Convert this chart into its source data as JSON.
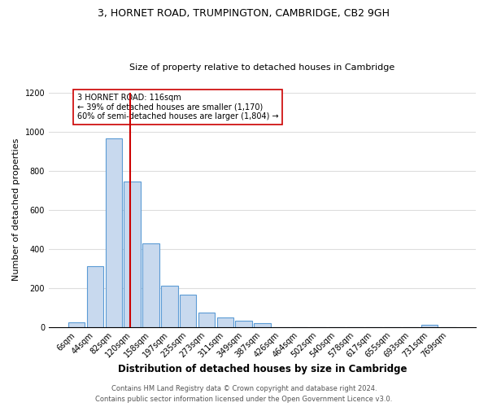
{
  "title": "3, HORNET ROAD, TRUMPINGTON, CAMBRIDGE, CB2 9GH",
  "subtitle": "Size of property relative to detached houses in Cambridge",
  "xlabel": "Distribution of detached houses by size in Cambridge",
  "ylabel": "Number of detached properties",
  "bar_labels": [
    "6sqm",
    "44sqm",
    "82sqm",
    "120sqm",
    "158sqm",
    "197sqm",
    "235sqm",
    "273sqm",
    "311sqm",
    "349sqm",
    "387sqm",
    "426sqm",
    "464sqm",
    "502sqm",
    "540sqm",
    "578sqm",
    "617sqm",
    "655sqm",
    "693sqm",
    "731sqm",
    "769sqm"
  ],
  "bar_values": [
    22,
    310,
    965,
    745,
    430,
    210,
    165,
    75,
    48,
    32,
    18,
    0,
    0,
    0,
    0,
    0,
    0,
    0,
    0,
    10,
    0
  ],
  "bar_color": "#c8d9ee",
  "bar_edge_color": "#5b9bd5",
  "vline_color": "#cc0000",
  "annotation_text": "3 HORNET ROAD: 116sqm\n← 39% of detached houses are smaller (1,170)\n60% of semi-detached houses are larger (1,804) →",
  "annotation_box_color": "#ffffff",
  "annotation_box_edge": "#cc0000",
  "ylim": [
    0,
    1200
  ],
  "yticks": [
    0,
    200,
    400,
    600,
    800,
    1000,
    1200
  ],
  "footer_line1": "Contains HM Land Registry data © Crown copyright and database right 2024.",
  "footer_line2": "Contains public sector information licensed under the Open Government Licence v3.0.",
  "bg_color": "#ffffff",
  "grid_color": "#dddddd",
  "title_fontsize": 9,
  "subtitle_fontsize": 8,
  "xlabel_fontsize": 8.5,
  "ylabel_fontsize": 8,
  "tick_fontsize": 7,
  "footer_fontsize": 6
}
